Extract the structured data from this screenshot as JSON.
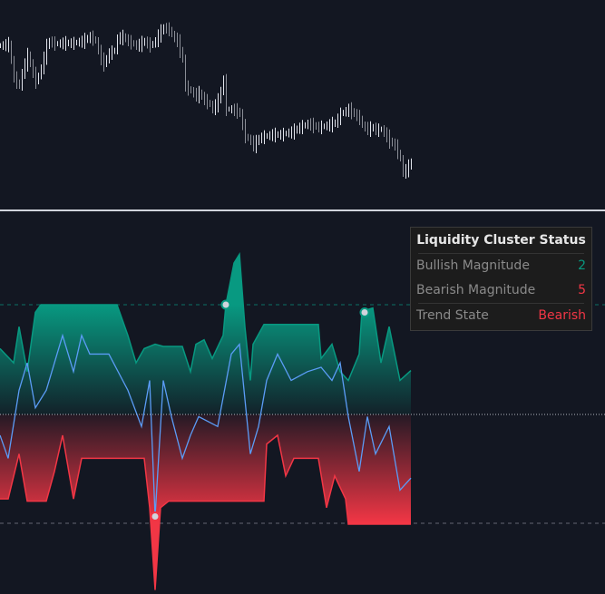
{
  "chart_data": [
    {
      "type": "bar",
      "pane": "price",
      "series": [
        {
          "values_close": [
            [
              0,
              190
            ],
            [
              3,
              192
            ],
            [
              5,
              155
            ],
            [
              7,
              145
            ],
            [
              8,
              160
            ],
            [
              10,
              180
            ],
            [
              12,
              160
            ],
            [
              13,
              150
            ],
            [
              15,
              165
            ],
            [
              17,
              190
            ],
            [
              18,
              195
            ],
            [
              20,
              192
            ],
            [
              23,
              193
            ],
            [
              27,
              193
            ],
            [
              30,
              195
            ],
            [
              33,
              200
            ],
            [
              35,
              195
            ],
            [
              37,
              175
            ],
            [
              38,
              170
            ],
            [
              40,
              182
            ],
            [
              42,
              185
            ],
            [
              43,
              198
            ],
            [
              45,
              200
            ],
            [
              47,
              195
            ],
            [
              50,
              190
            ],
            [
              53,
              195
            ],
            [
              55,
              190
            ],
            [
              57,
              195
            ],
            [
              58,
              202
            ],
            [
              60,
              210
            ],
            [
              62,
              208
            ],
            [
              63,
              202
            ],
            [
              65,
              195
            ],
            [
              67,
              175
            ],
            [
              68,
              145
            ],
            [
              70,
              140
            ],
            [
              72,
              135
            ],
            [
              73,
              138
            ],
            [
              75,
              130
            ],
            [
              77,
              125
            ],
            [
              78,
              120
            ],
            [
              80,
              130
            ],
            [
              82,
              152
            ],
            [
              83,
              120
            ],
            [
              85,
              120
            ],
            [
              87,
              118
            ],
            [
              88,
              115
            ],
            [
              90,
              90
            ],
            [
              92,
              85
            ],
            [
              93,
              80
            ],
            [
              95,
              88
            ],
            [
              97,
              90
            ],
            [
              100,
              92
            ],
            [
              103,
              92
            ],
            [
              107,
              95
            ],
            [
              110,
              100
            ],
            [
              113,
              104
            ],
            [
              117,
              100
            ],
            [
              120,
              102
            ],
            [
              123,
              105
            ],
            [
              125,
              115
            ],
            [
              127,
              118
            ],
            [
              128,
              120
            ],
            [
              130,
              115
            ],
            [
              132,
              110
            ],
            [
              133,
              102
            ],
            [
              135,
              98
            ],
            [
              137,
              100
            ],
            [
              138,
              97
            ],
            [
              140,
              98
            ],
            [
              142,
              90
            ],
            [
              143,
              85
            ],
            [
              145,
              80
            ],
            [
              147,
              65
            ],
            [
              148,
              50
            ],
            [
              150,
              57
            ],
            [
              151,
              62
            ]
          ]
        }
      ],
      "colors": {
        "bar": "#d1d4dc",
        "background": "#131722"
      }
    },
    {
      "type": "area",
      "pane": "oscillator",
      "levels": {
        "upper": 100,
        "zero": 0,
        "lower": -100
      },
      "series": [
        {
          "role": "bullish",
          "color": "#089981",
          "points": [
            [
              0,
              60
            ],
            [
              5,
              47
            ],
            [
              7,
              80
            ],
            [
              10,
              39
            ],
            [
              13,
              93
            ],
            [
              15,
              100
            ],
            [
              43,
              100
            ],
            [
              47,
              72
            ],
            [
              50,
              47
            ],
            [
              53,
              60
            ],
            [
              57,
              64
            ],
            [
              60,
              62
            ],
            [
              67,
              62
            ],
            [
              70,
              39
            ],
            [
              72,
              64
            ],
            [
              75,
              68
            ],
            [
              78,
              51
            ],
            [
              82,
              72
            ],
            [
              83,
              100
            ],
            [
              86,
              138
            ],
            [
              88,
              146
            ],
            [
              90,
              80
            ],
            [
              92,
              31
            ],
            [
              93,
              64
            ],
            [
              97,
              82
            ],
            [
              117,
              82
            ],
            [
              118,
              51
            ],
            [
              122,
              64
            ],
            [
              125,
              39
            ],
            [
              128,
              31
            ],
            [
              132,
              55
            ],
            [
              133,
              94
            ],
            [
              137,
              97
            ],
            [
              140,
              47
            ],
            [
              143,
              80
            ],
            [
              147,
              31
            ],
            [
              151,
              40
            ]
          ]
        },
        {
          "role": "bearish",
          "color": "#f23645",
          "points": [
            [
              0,
              -77
            ],
            [
              3,
              -77
            ],
            [
              7,
              -36
            ],
            [
              10,
              -79
            ],
            [
              17,
              -79
            ],
            [
              20,
              -52
            ],
            [
              23,
              -19
            ],
            [
              27,
              -77
            ],
            [
              30,
              -40
            ],
            [
              53,
              -40
            ],
            [
              55,
              -85
            ],
            [
              57,
              -160
            ],
            [
              59,
              -85
            ],
            [
              62,
              -79
            ],
            [
              97,
              -79
            ],
            [
              98,
              -27
            ],
            [
              102,
              -19
            ],
            [
              105,
              -56
            ],
            [
              108,
              -40
            ],
            [
              117,
              -40
            ],
            [
              120,
              -85
            ],
            [
              123,
              -56
            ],
            [
              127,
              -77
            ],
            [
              128,
              -100
            ],
            [
              151,
              -100
            ]
          ]
        },
        {
          "role": "oscillator-line",
          "type": "line",
          "color": "#5b9cf6",
          "points": [
            [
              0,
              -19
            ],
            [
              3,
              -40
            ],
            [
              7,
              22
            ],
            [
              10,
              47
            ],
            [
              13,
              6
            ],
            [
              17,
              22
            ],
            [
              20,
              47
            ],
            [
              23,
              72
            ],
            [
              27,
              39
            ],
            [
              30,
              72
            ],
            [
              33,
              55
            ],
            [
              40,
              55
            ],
            [
              47,
              22
            ],
            [
              52,
              -11
            ],
            [
              55,
              31
            ],
            [
              57,
              -93
            ],
            [
              60,
              31
            ],
            [
              63,
              -2
            ],
            [
              67,
              -40
            ],
            [
              70,
              -19
            ],
            [
              73,
              -2
            ],
            [
              80,
              -11
            ],
            [
              85,
              55
            ],
            [
              88,
              64
            ],
            [
              92,
              -36
            ],
            [
              95,
              -11
            ],
            [
              98,
              31
            ],
            [
              102,
              55
            ],
            [
              107,
              31
            ],
            [
              113,
              39
            ],
            [
              118,
              43
            ],
            [
              122,
              31
            ],
            [
              125,
              47
            ],
            [
              128,
              -2
            ],
            [
              132,
              -52
            ],
            [
              135,
              -2
            ],
            [
              138,
              -36
            ],
            [
              143,
              -11
            ],
            [
              147,
              -69
            ],
            [
              151,
              -58
            ]
          ]
        }
      ],
      "markers": [
        {
          "x": 83,
          "y": 100,
          "color": "#089981"
        },
        {
          "x": 134,
          "y": 93,
          "color": "#089981"
        },
        {
          "x": 57,
          "y": -93,
          "color": "#f23645"
        }
      ]
    }
  ],
  "status_table": {
    "title": "Liquidity Cluster Status",
    "rows": [
      {
        "label": "Bullish Magnitude",
        "value": "2",
        "color": "#089981"
      },
      {
        "label": "Bearish Magnitude",
        "value": "5",
        "color": "#f23645"
      },
      {
        "label": "Trend State",
        "value": "Bearish",
        "color": "#f23645"
      }
    ]
  }
}
